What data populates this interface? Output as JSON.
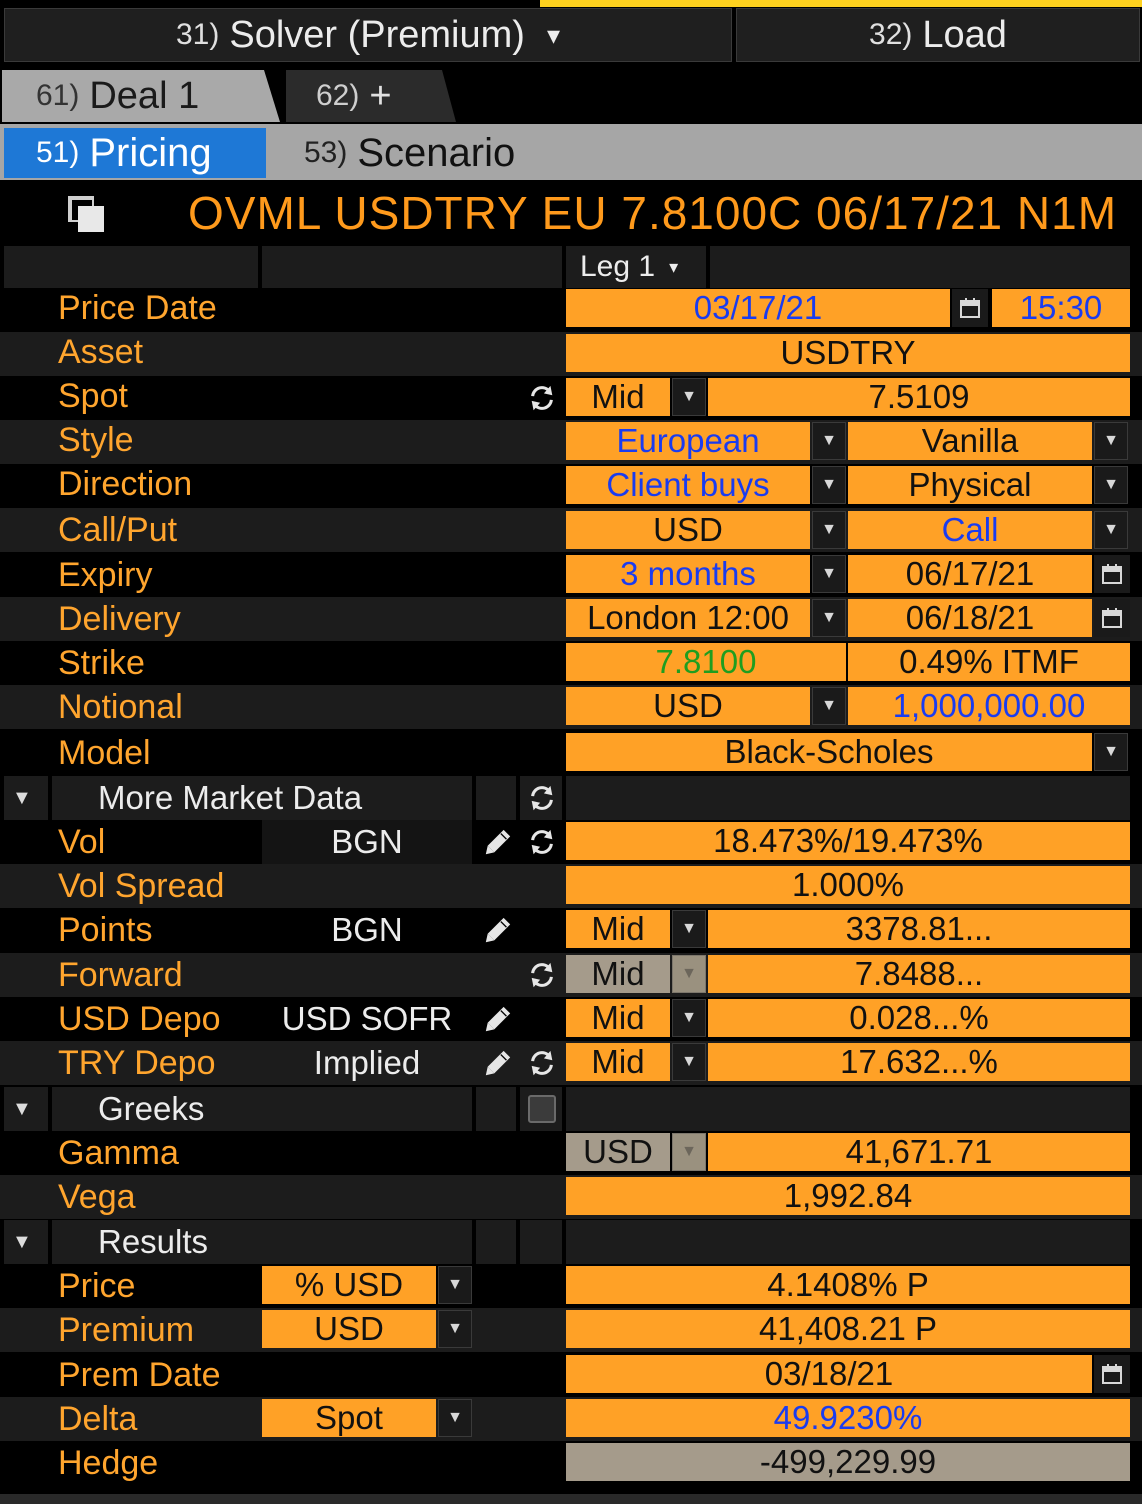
{
  "top": {
    "solver": {
      "num": "31)",
      "label": "Solver (Premium)",
      "arrow": "▾"
    },
    "load": {
      "num": "32)",
      "label": "Load"
    }
  },
  "deal_tabs": [
    {
      "num": "61)",
      "label": "Deal 1"
    },
    {
      "num": "62)",
      "label": "+"
    }
  ],
  "sub_tabs": [
    {
      "num": "51)",
      "label": "Pricing"
    },
    {
      "num": "53)",
      "label": "Scenario"
    }
  ],
  "title": "OVML USDTRY EU 7.8100C 06/17/21 N1M",
  "leg": {
    "label": "Leg 1",
    "arrow": "▾"
  },
  "rows": {
    "price_date": {
      "label": "Price Date",
      "date": "03/17/21",
      "time": "15:30"
    },
    "asset": {
      "label": "Asset",
      "value": "USDTRY"
    },
    "spot": {
      "label": "Spot",
      "side": "Mid",
      "value": "7.5109"
    },
    "style": {
      "label": "Style",
      "a": "European",
      "b": "Vanilla"
    },
    "direction": {
      "label": "Direction",
      "a": "Client buys",
      "b": "Physical"
    },
    "call_put": {
      "label": "Call/Put",
      "a": "USD",
      "b": "Call"
    },
    "expiry": {
      "label": "Expiry",
      "a": "3 months",
      "b": "06/17/21"
    },
    "delivery": {
      "label": "Delivery",
      "a": "London 12:00",
      "b": "06/18/21"
    },
    "strike": {
      "label": "Strike",
      "a": "7.8100",
      "b": "0.49% ITMF"
    },
    "notional": {
      "label": "Notional",
      "a": "USD",
      "b": "1,000,000.00"
    },
    "model": {
      "label": "Model",
      "value": "Black-Scholes"
    }
  },
  "market": {
    "title": "More Market Data",
    "vol": {
      "label": "Vol",
      "source": "BGN",
      "value": "18.473%/19.473%"
    },
    "vol_spread": {
      "label": "Vol Spread",
      "value": "1.000%"
    },
    "points": {
      "label": "Points",
      "source": "BGN",
      "side": "Mid",
      "value": "3378.81..."
    },
    "forward": {
      "label": "Forward",
      "side": "Mid",
      "value": "7.8488..."
    },
    "usd_depo": {
      "label": "USD Depo",
      "source": "USD SOFR",
      "side": "Mid",
      "value": "0.028...%"
    },
    "try_depo": {
      "label": "TRY Depo",
      "source": "Implied",
      "side": "Mid",
      "value": "17.632...%"
    }
  },
  "greeks": {
    "title": "Greeks",
    "gamma": {
      "label": "Gamma",
      "ccy": "USD",
      "value": "41,671.71"
    },
    "vega": {
      "label": "Vega",
      "value": "1,992.84"
    }
  },
  "results": {
    "title": "Results",
    "price": {
      "label": "Price",
      "unit": "% USD",
      "value": "4.1408% P"
    },
    "premium": {
      "label": "Premium",
      "unit": "USD",
      "value": "41,408.21 P"
    },
    "prem_date": {
      "label": "Prem Date",
      "value": "03/18/21"
    },
    "delta": {
      "label": "Delta",
      "unit": "Spot",
      "value": "49.9230%"
    },
    "hedge": {
      "label": "Hedge",
      "value": "-499,229.99"
    }
  },
  "icons": [
    "copy-icon",
    "calendar-icon",
    "refresh-icon",
    "pencil-icon",
    "dropdown-arrow-icon",
    "checkbox-icon",
    "collapse-triangle-icon"
  ],
  "colors": {
    "orange_label": "#ffa52e",
    "orange_field": "#ffa126",
    "blue_value": "#1a3cf0",
    "green_value": "#1f9e1f",
    "active_tab": "#1e78d6"
  }
}
